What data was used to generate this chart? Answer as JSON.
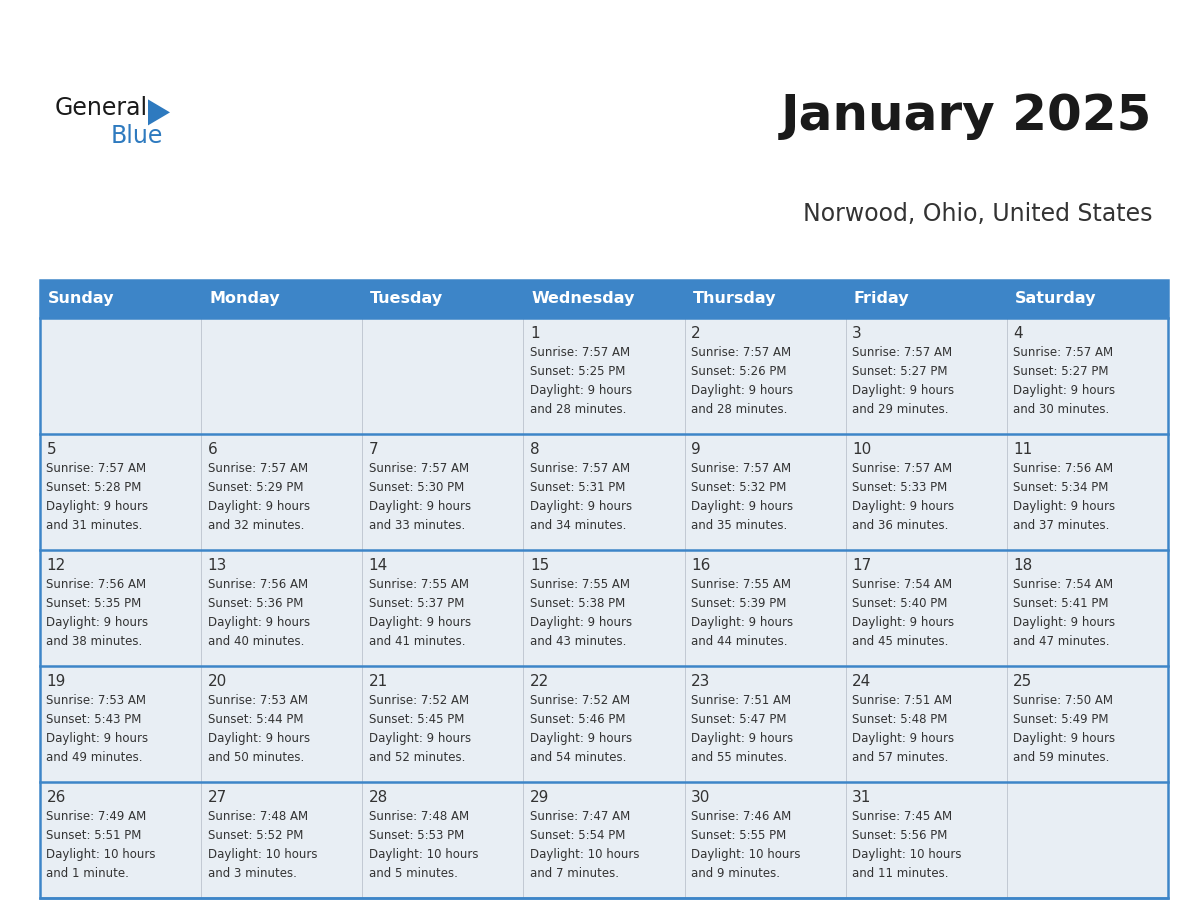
{
  "title": "January 2025",
  "subtitle": "Norwood, Ohio, United States",
  "header_color": "#3d85c8",
  "header_text_color": "#ffffff",
  "cell_bg_color": "#e8eef4",
  "empty_cell_bg": "#e8eef4",
  "border_color": "#3d85c8",
  "text_color": "#333333",
  "days_of_week": [
    "Sunday",
    "Monday",
    "Tuesday",
    "Wednesday",
    "Thursday",
    "Friday",
    "Saturday"
  ],
  "title_fontsize": 36,
  "subtitle_fontsize": 17,
  "day_num_fontsize": 11,
  "cell_text_fontsize": 8.5,
  "header_fontsize": 11.5,
  "calendar_data": [
    [
      {
        "day": "",
        "sunrise": "",
        "sunset": "",
        "daylight_h": "",
        "daylight_m": ""
      },
      {
        "day": "",
        "sunrise": "",
        "sunset": "",
        "daylight_h": "",
        "daylight_m": ""
      },
      {
        "day": "",
        "sunrise": "",
        "sunset": "",
        "daylight_h": "",
        "daylight_m": ""
      },
      {
        "day": "1",
        "sunrise": "7:57 AM",
        "sunset": "5:25 PM",
        "daylight_h": "9 hours",
        "daylight_m": "and 28 minutes."
      },
      {
        "day": "2",
        "sunrise": "7:57 AM",
        "sunset": "5:26 PM",
        "daylight_h": "9 hours",
        "daylight_m": "and 28 minutes."
      },
      {
        "day": "3",
        "sunrise": "7:57 AM",
        "sunset": "5:27 PM",
        "daylight_h": "9 hours",
        "daylight_m": "and 29 minutes."
      },
      {
        "day": "4",
        "sunrise": "7:57 AM",
        "sunset": "5:27 PM",
        "daylight_h": "9 hours",
        "daylight_m": "and 30 minutes."
      }
    ],
    [
      {
        "day": "5",
        "sunrise": "7:57 AM",
        "sunset": "5:28 PM",
        "daylight_h": "9 hours",
        "daylight_m": "and 31 minutes."
      },
      {
        "day": "6",
        "sunrise": "7:57 AM",
        "sunset": "5:29 PM",
        "daylight_h": "9 hours",
        "daylight_m": "and 32 minutes."
      },
      {
        "day": "7",
        "sunrise": "7:57 AM",
        "sunset": "5:30 PM",
        "daylight_h": "9 hours",
        "daylight_m": "and 33 minutes."
      },
      {
        "day": "8",
        "sunrise": "7:57 AM",
        "sunset": "5:31 PM",
        "daylight_h": "9 hours",
        "daylight_m": "and 34 minutes."
      },
      {
        "day": "9",
        "sunrise": "7:57 AM",
        "sunset": "5:32 PM",
        "daylight_h": "9 hours",
        "daylight_m": "and 35 minutes."
      },
      {
        "day": "10",
        "sunrise": "7:57 AM",
        "sunset": "5:33 PM",
        "daylight_h": "9 hours",
        "daylight_m": "and 36 minutes."
      },
      {
        "day": "11",
        "sunrise": "7:56 AM",
        "sunset": "5:34 PM",
        "daylight_h": "9 hours",
        "daylight_m": "and 37 minutes."
      }
    ],
    [
      {
        "day": "12",
        "sunrise": "7:56 AM",
        "sunset": "5:35 PM",
        "daylight_h": "9 hours",
        "daylight_m": "and 38 minutes."
      },
      {
        "day": "13",
        "sunrise": "7:56 AM",
        "sunset": "5:36 PM",
        "daylight_h": "9 hours",
        "daylight_m": "and 40 minutes."
      },
      {
        "day": "14",
        "sunrise": "7:55 AM",
        "sunset": "5:37 PM",
        "daylight_h": "9 hours",
        "daylight_m": "and 41 minutes."
      },
      {
        "day": "15",
        "sunrise": "7:55 AM",
        "sunset": "5:38 PM",
        "daylight_h": "9 hours",
        "daylight_m": "and 43 minutes."
      },
      {
        "day": "16",
        "sunrise": "7:55 AM",
        "sunset": "5:39 PM",
        "daylight_h": "9 hours",
        "daylight_m": "and 44 minutes."
      },
      {
        "day": "17",
        "sunrise": "7:54 AM",
        "sunset": "5:40 PM",
        "daylight_h": "9 hours",
        "daylight_m": "and 45 minutes."
      },
      {
        "day": "18",
        "sunrise": "7:54 AM",
        "sunset": "5:41 PM",
        "daylight_h": "9 hours",
        "daylight_m": "and 47 minutes."
      }
    ],
    [
      {
        "day": "19",
        "sunrise": "7:53 AM",
        "sunset": "5:43 PM",
        "daylight_h": "9 hours",
        "daylight_m": "and 49 minutes."
      },
      {
        "day": "20",
        "sunrise": "7:53 AM",
        "sunset": "5:44 PM",
        "daylight_h": "9 hours",
        "daylight_m": "and 50 minutes."
      },
      {
        "day": "21",
        "sunrise": "7:52 AM",
        "sunset": "5:45 PM",
        "daylight_h": "9 hours",
        "daylight_m": "and 52 minutes."
      },
      {
        "day": "22",
        "sunrise": "7:52 AM",
        "sunset": "5:46 PM",
        "daylight_h": "9 hours",
        "daylight_m": "and 54 minutes."
      },
      {
        "day": "23",
        "sunrise": "7:51 AM",
        "sunset": "5:47 PM",
        "daylight_h": "9 hours",
        "daylight_m": "and 55 minutes."
      },
      {
        "day": "24",
        "sunrise": "7:51 AM",
        "sunset": "5:48 PM",
        "daylight_h": "9 hours",
        "daylight_m": "and 57 minutes."
      },
      {
        "day": "25",
        "sunrise": "7:50 AM",
        "sunset": "5:49 PM",
        "daylight_h": "9 hours",
        "daylight_m": "and 59 minutes."
      }
    ],
    [
      {
        "day": "26",
        "sunrise": "7:49 AM",
        "sunset": "5:51 PM",
        "daylight_h": "10 hours",
        "daylight_m": "and 1 minute."
      },
      {
        "day": "27",
        "sunrise": "7:48 AM",
        "sunset": "5:52 PM",
        "daylight_h": "10 hours",
        "daylight_m": "and 3 minutes."
      },
      {
        "day": "28",
        "sunrise": "7:48 AM",
        "sunset": "5:53 PM",
        "daylight_h": "10 hours",
        "daylight_m": "and 5 minutes."
      },
      {
        "day": "29",
        "sunrise": "7:47 AM",
        "sunset": "5:54 PM",
        "daylight_h": "10 hours",
        "daylight_m": "and 7 minutes."
      },
      {
        "day": "30",
        "sunrise": "7:46 AM",
        "sunset": "5:55 PM",
        "daylight_h": "10 hours",
        "daylight_m": "and 9 minutes."
      },
      {
        "day": "31",
        "sunrise": "7:45 AM",
        "sunset": "5:56 PM",
        "daylight_h": "10 hours",
        "daylight_m": "and 11 minutes."
      },
      {
        "day": "",
        "sunrise": "",
        "sunset": "",
        "daylight_h": "",
        "daylight_m": ""
      }
    ]
  ]
}
